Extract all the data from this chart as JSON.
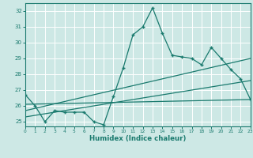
{
  "title": "",
  "xlabel": "Humidex (Indice chaleur)",
  "xlim": [
    0,
    23
  ],
  "ylim": [
    24.7,
    32.5
  ],
  "yticks": [
    25,
    26,
    27,
    28,
    29,
    30,
    31,
    32
  ],
  "xticks": [
    0,
    1,
    2,
    3,
    4,
    5,
    6,
    7,
    8,
    9,
    10,
    11,
    12,
    13,
    14,
    15,
    16,
    17,
    18,
    19,
    20,
    21,
    22,
    23
  ],
  "bg_color": "#cde8e5",
  "line_color": "#1a7a6e",
  "grid_color": "#ffffff",
  "series1_x": [
    0,
    1,
    2,
    3,
    4,
    5,
    6,
    7,
    8,
    9,
    10,
    11,
    12,
    13,
    14,
    15,
    16,
    17,
    18,
    19,
    20,
    21,
    22,
    23
  ],
  "series1_y": [
    26.7,
    26.0,
    25.0,
    25.7,
    25.6,
    25.6,
    25.6,
    25.0,
    24.8,
    26.6,
    28.4,
    30.5,
    31.0,
    32.2,
    30.6,
    29.2,
    29.1,
    29.0,
    28.6,
    29.7,
    29.0,
    28.3,
    27.7,
    26.4
  ],
  "series2_x": [
    0,
    23
  ],
  "series2_y": [
    25.7,
    29.0
  ],
  "series3_x": [
    0,
    23
  ],
  "series3_y": [
    25.3,
    27.6
  ],
  "series4_x": [
    0,
    23
  ],
  "series4_y": [
    26.1,
    26.4
  ]
}
